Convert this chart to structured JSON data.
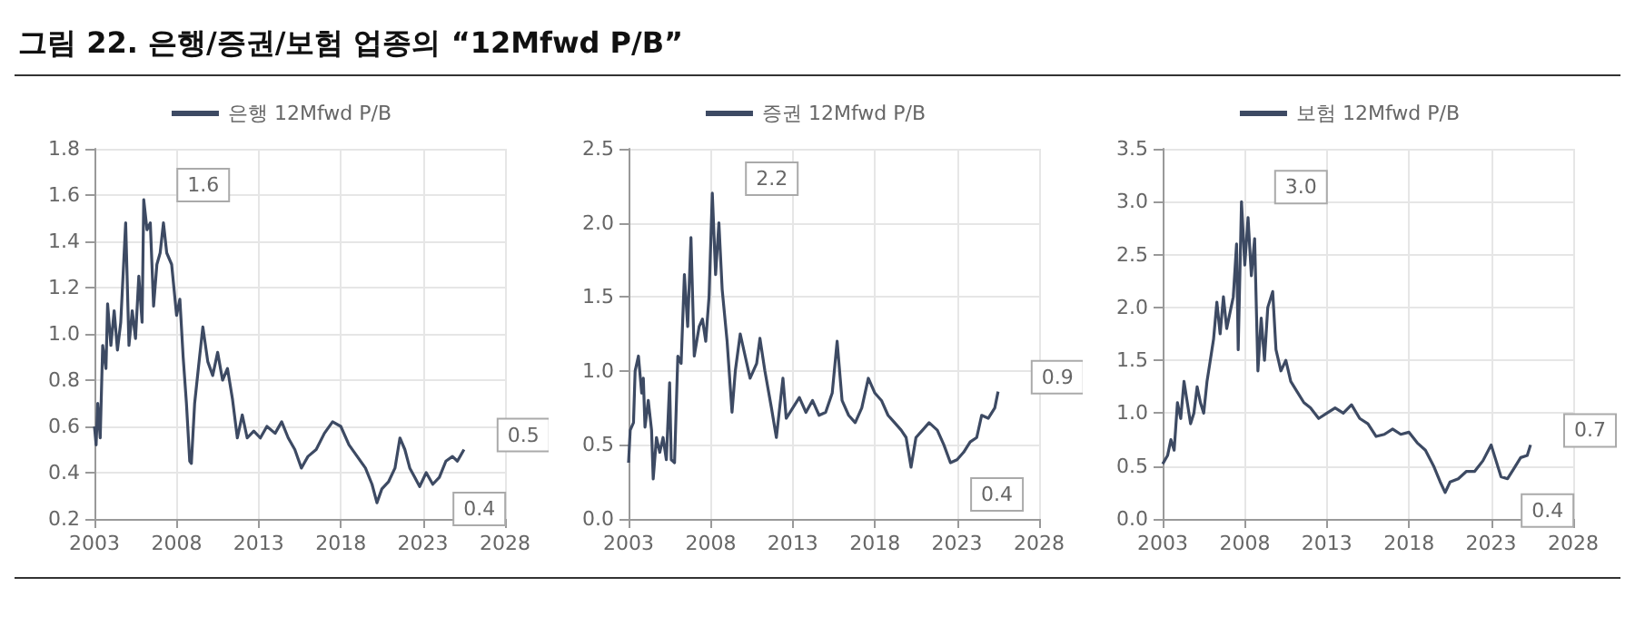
{
  "chart_data": [
    {
      "type": "line",
      "title": "그림 22. 은행/증권/보험 업종의 “12Mfwd P/B”",
      "xlim": [
        2003,
        2028
      ],
      "xticks": [
        2003,
        2008,
        2013,
        2018,
        2023,
        2028
      ],
      "ylim": [
        0.2,
        1.8
      ],
      "yticks": [
        0.2,
        0.4,
        0.6,
        0.8,
        {
          "value": 1,
          "label": "1.0"
        },
        1.2,
        1.4,
        1.6,
        1.8
      ],
      "grid": true,
      "legend": "top",
      "marker": "none",
      "series": [
        {
          "name": "은행 12Mfwd P/B",
          "color": "#3d4a63",
          "x": [
            2003.0,
            2003.1,
            2003.2,
            2003.35,
            2003.5,
            2003.7,
            2003.8,
            2004.0,
            2004.2,
            2004.4,
            2004.6,
            2004.9,
            2005.1,
            2005.3,
            2005.5,
            2005.7,
            2005.9,
            2006.0,
            2006.2,
            2006.4,
            2006.6,
            2006.8,
            2007.0,
            2007.2,
            2007.4,
            2007.7,
            2008.0,
            2008.2,
            2008.4,
            2008.6,
            2008.8,
            2008.9,
            2009.1,
            2009.4,
            2009.6,
            2009.9,
            2010.2,
            2010.5,
            2010.8,
            2011.1,
            2011.4,
            2011.7,
            2012.0,
            2012.3,
            2012.7,
            2013.1,
            2013.5,
            2014.0,
            2014.4,
            2014.8,
            2015.2,
            2015.6,
            2016.0,
            2016.5,
            2017.0,
            2017.5,
            2018.0,
            2018.5,
            2019.0,
            2019.5,
            2019.9,
            2020.2,
            2020.5,
            2020.9,
            2021.3,
            2021.6,
            2021.9,
            2022.2,
            2022.5,
            2022.8,
            2023.2,
            2023.6,
            2024.0,
            2024.4,
            2024.8,
            2025.1,
            2025.5
          ],
          "values": [
            0.6,
            0.52,
            0.7,
            0.55,
            0.95,
            0.85,
            1.13,
            0.95,
            1.1,
            0.93,
            1.05,
            1.48,
            0.95,
            1.1,
            0.98,
            1.25,
            1.05,
            1.58,
            1.45,
            1.48,
            1.12,
            1.3,
            1.35,
            1.48,
            1.35,
            1.3,
            1.08,
            1.15,
            0.9,
            0.7,
            0.45,
            0.44,
            0.7,
            0.9,
            1.03,
            0.88,
            0.82,
            0.92,
            0.8,
            0.85,
            0.72,
            0.55,
            0.65,
            0.55,
            0.58,
            0.55,
            0.6,
            0.57,
            0.62,
            0.55,
            0.5,
            0.42,
            0.47,
            0.5,
            0.57,
            0.62,
            0.6,
            0.52,
            0.47,
            0.42,
            0.35,
            0.27,
            0.33,
            0.36,
            0.42,
            0.55,
            0.5,
            0.42,
            0.38,
            0.34,
            0.4,
            0.35,
            0.38,
            0.45,
            0.47,
            0.45,
            0.5
          ]
        }
      ],
      "annotations": [
        {
          "text": "1.6",
          "x": 2006.0,
          "y": 1.58
        },
        {
          "text": "0.5",
          "x": 2025.5,
          "y": 0.5
        },
        {
          "text": "0.4",
          "x": 2024.0,
          "y": 0.38
        }
      ]
    },
    {
      "type": "line",
      "xlim": [
        2003,
        2028
      ],
      "xticks": [
        2003,
        2008,
        2013,
        2018,
        2023,
        2028
      ],
      "ylim": [
        0,
        2.5
      ],
      "yticks": [
        {
          "value": 0,
          "label": "0.0"
        },
        0.5,
        {
          "value": 1,
          "label": "1.0"
        },
        1.5,
        {
          "value": 2,
          "label": "2.0"
        },
        2.5
      ],
      "grid": true,
      "legend": "top",
      "marker": "none",
      "series": [
        {
          "name": "증권 12Mfwd P/B",
          "color": "#3d4a63",
          "x": [
            2003.0,
            2003.1,
            2003.3,
            2003.4,
            2003.6,
            2003.8,
            2003.9,
            2004.0,
            2004.2,
            2004.4,
            2004.5,
            2004.7,
            2004.9,
            2005.1,
            2005.3,
            2005.5,
            2005.6,
            2005.8,
            2006.0,
            2006.2,
            2006.4,
            2006.6,
            2006.8,
            2007.0,
            2007.3,
            2007.5,
            2007.7,
            2007.9,
            2008.1,
            2008.3,
            2008.5,
            2008.7,
            2009.0,
            2009.3,
            2009.5,
            2009.8,
            2010.1,
            2010.4,
            2010.8,
            2011.0,
            2011.3,
            2011.7,
            2012.0,
            2012.4,
            2012.6,
            2013.0,
            2013.4,
            2013.8,
            2014.2,
            2014.6,
            2015.0,
            2015.4,
            2015.7,
            2016.0,
            2016.4,
            2016.8,
            2017.2,
            2017.6,
            2018.0,
            2018.4,
            2018.8,
            2019.2,
            2019.6,
            2019.9,
            2020.2,
            2020.5,
            2020.9,
            2021.3,
            2021.8,
            2022.2,
            2022.6,
            2023.0,
            2023.4,
            2023.8,
            2024.2,
            2024.5,
            2024.9,
            2025.3,
            2025.5
          ],
          "values": [
            0.38,
            0.6,
            0.65,
            1.0,
            1.1,
            0.85,
            0.95,
            0.62,
            0.8,
            0.6,
            0.27,
            0.55,
            0.45,
            0.55,
            0.4,
            0.92,
            0.4,
            0.38,
            1.1,
            1.05,
            1.65,
            1.3,
            1.9,
            1.1,
            1.3,
            1.35,
            1.2,
            1.5,
            2.2,
            1.65,
            2.0,
            1.55,
            1.2,
            0.72,
            1.0,
            1.25,
            1.1,
            0.95,
            1.05,
            1.22,
            1.0,
            0.75,
            0.55,
            0.95,
            0.68,
            0.75,
            0.82,
            0.72,
            0.8,
            0.7,
            0.72,
            0.85,
            1.2,
            0.8,
            0.7,
            0.65,
            0.75,
            0.95,
            0.85,
            0.8,
            0.7,
            0.65,
            0.6,
            0.55,
            0.35,
            0.55,
            0.6,
            0.65,
            0.6,
            0.5,
            0.38,
            0.4,
            0.45,
            0.52,
            0.55,
            0.7,
            0.68,
            0.75,
            0.86
          ]
        }
      ],
      "annotations": [
        {
          "text": "2.2",
          "x": 2008.1,
          "y": 2.2
        },
        {
          "text": "0.9",
          "x": 2025.5,
          "y": 0.86
        },
        {
          "text": "0.4",
          "x": 2023.0,
          "y": 0.38
        }
      ]
    },
    {
      "type": "line",
      "xlim": [
        2003,
        2028
      ],
      "xticks": [
        2003,
        2008,
        2013,
        2018,
        2023,
        2028
      ],
      "ylim": [
        0,
        3.5
      ],
      "yticks": [
        {
          "value": 0,
          "label": "0.0"
        },
        0.5,
        {
          "value": 1,
          "label": "1.0"
        },
        1.5,
        {
          "value": 2,
          "label": "2.0"
        },
        2.5,
        {
          "value": 3,
          "label": "3.0"
        },
        3.5
      ],
      "grid": true,
      "legend": "top",
      "marker": "none",
      "series": [
        {
          "name": "보험 12Mfwd P/B",
          "color": "#3d4a63",
          "x": [
            2003.0,
            2003.3,
            2003.5,
            2003.7,
            2003.9,
            2004.1,
            2004.3,
            2004.5,
            2004.7,
            2004.9,
            2005.1,
            2005.3,
            2005.5,
            2005.7,
            2005.9,
            2006.1,
            2006.3,
            2006.5,
            2006.7,
            2006.9,
            2007.1,
            2007.3,
            2007.5,
            2007.6,
            2007.8,
            2008.0,
            2008.2,
            2008.4,
            2008.6,
            2008.8,
            2009.0,
            2009.2,
            2009.4,
            2009.7,
            2009.9,
            2010.2,
            2010.5,
            2010.8,
            2011.2,
            2011.6,
            2012.0,
            2012.5,
            2013.0,
            2013.5,
            2014.0,
            2014.5,
            2015.0,
            2015.5,
            2016.0,
            2016.5,
            2017.0,
            2017.5,
            2018.0,
            2018.5,
            2019.0,
            2019.5,
            2019.9,
            2020.2,
            2020.5,
            2021.0,
            2021.5,
            2022.0,
            2022.5,
            2023.0,
            2023.3,
            2023.6,
            2024.0,
            2024.4,
            2024.8,
            2025.2,
            2025.4
          ],
          "values": [
            0.52,
            0.6,
            0.75,
            0.65,
            1.1,
            0.95,
            1.3,
            1.1,
            0.9,
            1.0,
            1.25,
            1.1,
            1.0,
            1.3,
            1.5,
            1.7,
            2.05,
            1.75,
            2.1,
            1.8,
            1.95,
            2.1,
            2.6,
            1.6,
            3.0,
            2.4,
            2.85,
            2.3,
            2.65,
            1.4,
            1.9,
            1.5,
            2.0,
            2.15,
            1.6,
            1.4,
            1.5,
            1.3,
            1.2,
            1.1,
            1.05,
            0.95,
            1.0,
            1.05,
            1.0,
            1.08,
            0.95,
            0.9,
            0.78,
            0.8,
            0.85,
            0.8,
            0.82,
            0.72,
            0.65,
            0.5,
            0.35,
            0.25,
            0.35,
            0.38,
            0.45,
            0.45,
            0.55,
            0.7,
            0.55,
            0.4,
            0.38,
            0.48,
            0.58,
            0.6,
            0.7
          ]
        }
      ],
      "annotations": [
        {
          "text": "3.0",
          "x": 2007.8,
          "y": 3.0
        },
        {
          "text": "0.7",
          "x": 2025.4,
          "y": 0.7
        },
        {
          "text": "0.4",
          "x": 2024.0,
          "y": 0.38
        }
      ]
    }
  ]
}
